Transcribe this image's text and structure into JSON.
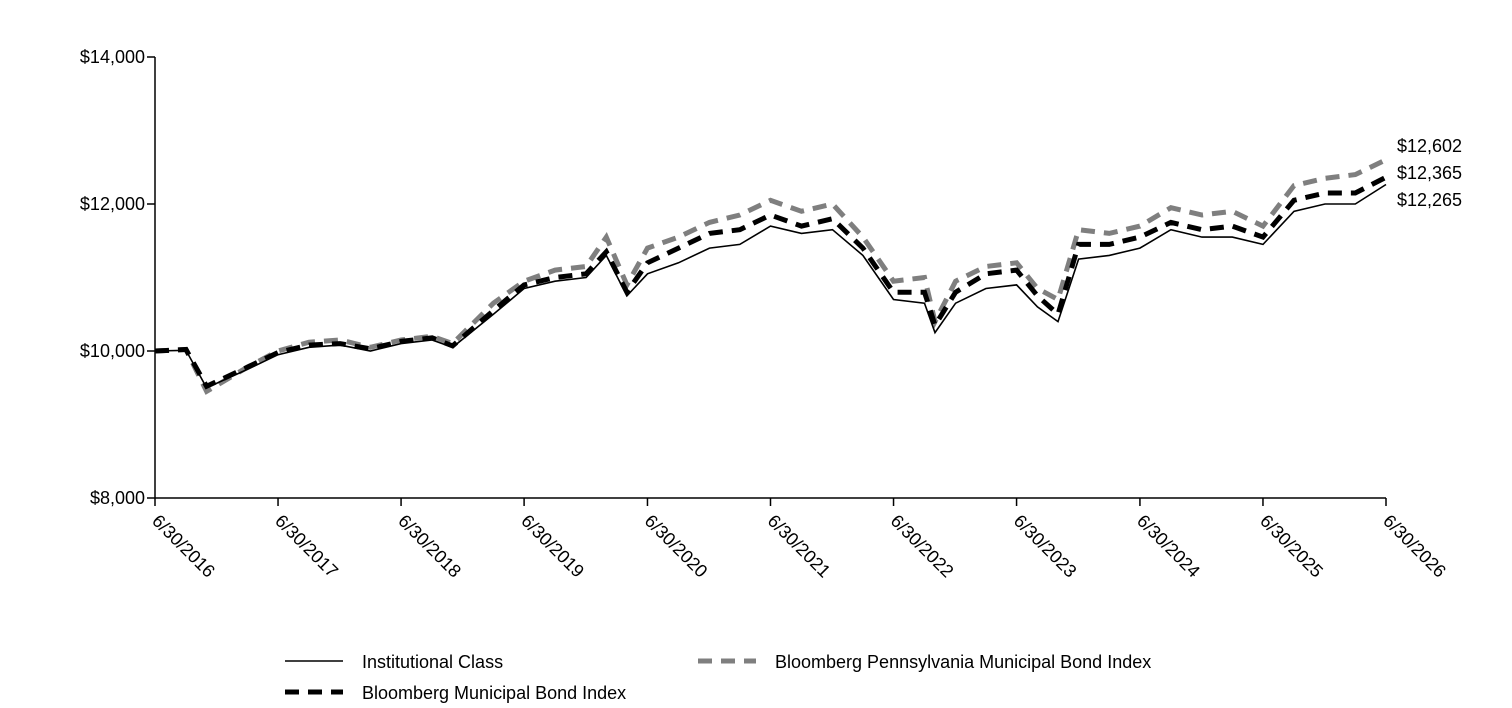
{
  "chart_data": {
    "type": "line",
    "title": "",
    "xlabel": "",
    "ylabel": "",
    "ylim": [
      8000,
      14000
    ],
    "xlim": [
      "2016-06-30",
      "2026-06-30"
    ],
    "y_ticks": [
      8000,
      10000,
      12000,
      14000
    ],
    "y_tick_labels": [
      "$8,000",
      "$10,000",
      "$12,000",
      "$14,000"
    ],
    "x_ticks": [
      "2016-06-30",
      "2017-06-30",
      "2018-06-30",
      "2019-06-30",
      "2020-06-30",
      "2021-06-30",
      "2022-06-30",
      "2023-06-30",
      "2024-06-30",
      "2025-06-30",
      "2026-06-30"
    ],
    "x_tick_labels": [
      "6/30/2016",
      "6/30/2017",
      "6/30/2018",
      "6/30/2019",
      "6/30/2020",
      "6/30/2021",
      "6/30/2022",
      "6/30/2023",
      "6/30/2024",
      "6/30/2025",
      "6/30/2026"
    ],
    "grid": false,
    "legend_position": "bottom",
    "series": [
      {
        "name": "Institutional Class",
        "color": "#000000",
        "style": "solid-thin",
        "end_label": "$12,265",
        "points": [
          [
            "2016-06-30",
            10000
          ],
          [
            "2016-09-30",
            10010
          ],
          [
            "2016-11-30",
            9500
          ],
          [
            "2017-03-31",
            9750
          ],
          [
            "2017-06-30",
            9950
          ],
          [
            "2017-09-30",
            10050
          ],
          [
            "2017-12-31",
            10080
          ],
          [
            "2018-03-31",
            10000
          ],
          [
            "2018-06-30",
            10100
          ],
          [
            "2018-09-30",
            10150
          ],
          [
            "2018-11-30",
            10050
          ],
          [
            "2019-03-31",
            10500
          ],
          [
            "2019-06-30",
            10850
          ],
          [
            "2019-09-30",
            10950
          ],
          [
            "2019-12-31",
            11000
          ],
          [
            "2020-02-29",
            11300
          ],
          [
            "2020-04-30",
            10750
          ],
          [
            "2020-06-30",
            11050
          ],
          [
            "2020-09-30",
            11200
          ],
          [
            "2020-12-31",
            11400
          ],
          [
            "2021-03-31",
            11450
          ],
          [
            "2021-06-30",
            11700
          ],
          [
            "2021-09-30",
            11600
          ],
          [
            "2021-12-31",
            11650
          ],
          [
            "2022-03-31",
            11300
          ],
          [
            "2022-06-30",
            10700
          ],
          [
            "2022-09-30",
            10650
          ],
          [
            "2022-10-31",
            10250
          ],
          [
            "2022-12-31",
            10650
          ],
          [
            "2023-03-31",
            10850
          ],
          [
            "2023-06-30",
            10900
          ],
          [
            "2023-08-31",
            10600
          ],
          [
            "2023-10-31",
            10400
          ],
          [
            "2023-12-31",
            11250
          ],
          [
            "2024-03-31",
            11300
          ],
          [
            "2024-06-30",
            11400
          ],
          [
            "2024-09-30",
            11650
          ],
          [
            "2024-12-31",
            11550
          ],
          [
            "2025-03-31",
            11550
          ],
          [
            "2025-06-30",
            11450
          ],
          [
            "2025-09-30",
            11900
          ],
          [
            "2025-12-31",
            12000
          ],
          [
            "2026-03-31",
            12000
          ],
          [
            "2026-06-30",
            12265
          ]
        ]
      },
      {
        "name": "Bloomberg Municipal Bond Index",
        "color": "#000000",
        "style": "dashed-thick",
        "end_label": "$12,365",
        "points": [
          [
            "2016-06-30",
            10000
          ],
          [
            "2016-09-30",
            10020
          ],
          [
            "2016-11-30",
            9520
          ],
          [
            "2017-03-31",
            9780
          ],
          [
            "2017-06-30",
            9980
          ],
          [
            "2017-09-30",
            10080
          ],
          [
            "2017-12-31",
            10100
          ],
          [
            "2018-03-31",
            10030
          ],
          [
            "2018-06-30",
            10130
          ],
          [
            "2018-09-30",
            10180
          ],
          [
            "2018-11-30",
            10070
          ],
          [
            "2019-03-31",
            10550
          ],
          [
            "2019-06-30",
            10900
          ],
          [
            "2019-09-30",
            11000
          ],
          [
            "2019-12-31",
            11050
          ],
          [
            "2020-02-29",
            11350
          ],
          [
            "2020-04-30",
            10800
          ],
          [
            "2020-06-30",
            11200
          ],
          [
            "2020-09-30",
            11400
          ],
          [
            "2020-12-31",
            11600
          ],
          [
            "2021-03-31",
            11650
          ],
          [
            "2021-06-30",
            11850
          ],
          [
            "2021-09-30",
            11700
          ],
          [
            "2021-12-31",
            11800
          ],
          [
            "2022-03-31",
            11400
          ],
          [
            "2022-06-30",
            10800
          ],
          [
            "2022-09-30",
            10800
          ],
          [
            "2022-10-31",
            10350
          ],
          [
            "2022-12-31",
            10800
          ],
          [
            "2023-03-31",
            11050
          ],
          [
            "2023-06-30",
            11100
          ],
          [
            "2023-08-31",
            10750
          ],
          [
            "2023-10-31",
            10500
          ],
          [
            "2023-12-31",
            11450
          ],
          [
            "2024-03-31",
            11450
          ],
          [
            "2024-06-30",
            11550
          ],
          [
            "2024-09-30",
            11750
          ],
          [
            "2024-12-31",
            11650
          ],
          [
            "2025-03-31",
            11700
          ],
          [
            "2025-06-30",
            11550
          ],
          [
            "2025-09-30",
            12050
          ],
          [
            "2025-12-31",
            12150
          ],
          [
            "2026-03-31",
            12150
          ],
          [
            "2026-06-30",
            12365
          ]
        ]
      },
      {
        "name": "Bloomberg Pennsylvania Municipal Bond Index",
        "color": "#7f7f7f",
        "style": "dashed-thick",
        "end_label": "$12,602",
        "points": [
          [
            "2016-06-30",
            10000
          ],
          [
            "2016-09-30",
            10020
          ],
          [
            "2016-11-30",
            9450
          ],
          [
            "2017-03-31",
            9780
          ],
          [
            "2017-06-30",
            10000
          ],
          [
            "2017-09-30",
            10120
          ],
          [
            "2017-12-31",
            10150
          ],
          [
            "2018-03-31",
            10050
          ],
          [
            "2018-06-30",
            10150
          ],
          [
            "2018-09-30",
            10200
          ],
          [
            "2018-11-30",
            10100
          ],
          [
            "2019-03-31",
            10650
          ],
          [
            "2019-06-30",
            10950
          ],
          [
            "2019-09-30",
            11100
          ],
          [
            "2019-12-31",
            11150
          ],
          [
            "2020-02-29",
            11550
          ],
          [
            "2020-04-30",
            10900
          ],
          [
            "2020-06-30",
            11400
          ],
          [
            "2020-09-30",
            11550
          ],
          [
            "2020-12-31",
            11750
          ],
          [
            "2021-03-31",
            11850
          ],
          [
            "2021-06-30",
            12050
          ],
          [
            "2021-09-30",
            11900
          ],
          [
            "2021-12-31",
            12000
          ],
          [
            "2022-03-31",
            11550
          ],
          [
            "2022-06-30",
            10950
          ],
          [
            "2022-09-30",
            11000
          ],
          [
            "2022-10-31",
            10400
          ],
          [
            "2022-12-31",
            10950
          ],
          [
            "2023-03-31",
            11150
          ],
          [
            "2023-06-30",
            11200
          ],
          [
            "2023-08-31",
            10850
          ],
          [
            "2023-10-31",
            10700
          ],
          [
            "2023-12-31",
            11650
          ],
          [
            "2024-03-31",
            11600
          ],
          [
            "2024-06-30",
            11700
          ],
          [
            "2024-09-30",
            11950
          ],
          [
            "2024-12-31",
            11850
          ],
          [
            "2025-03-31",
            11900
          ],
          [
            "2025-06-30",
            11700
          ],
          [
            "2025-09-30",
            12250
          ],
          [
            "2025-12-31",
            12350
          ],
          [
            "2026-03-31",
            12400
          ],
          [
            "2026-06-30",
            12602
          ]
        ]
      }
    ]
  }
}
